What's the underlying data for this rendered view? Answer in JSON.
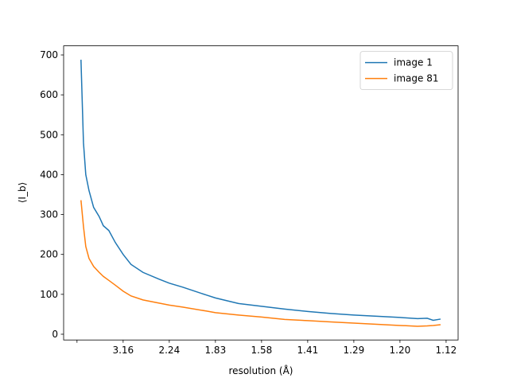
{
  "chart_data": {
    "type": "line",
    "xlabel": "resolution (Å)",
    "ylabel": "⟨I_b⟩",
    "x": [
      0.0086,
      0.014,
      0.019,
      0.026,
      0.036,
      0.048,
      0.057,
      0.069,
      0.083,
      0.1,
      0.117,
      0.143,
      0.178,
      0.2,
      0.229,
      0.281,
      0.3,
      0.35,
      0.4,
      0.45,
      0.5,
      0.55,
      0.6,
      0.65,
      0.7,
      0.738,
      0.759,
      0.772,
      0.788
    ],
    "series": [
      {
        "name": "image 1",
        "color": "#1f77b4",
        "values": [
          688,
          480,
          400,
          360,
          318,
          295,
          272,
          260,
          230,
          200,
          175,
          155,
          138,
          128,
          118,
          98,
          91,
          77,
          70,
          63,
          57,
          52,
          48,
          45,
          42,
          39,
          40,
          35,
          38
        ]
      },
      {
        "name": "image 81",
        "color": "#ff7f0e",
        "values": [
          336,
          270,
          220,
          190,
          170,
          155,
          145,
          135,
          123,
          108,
          96,
          86,
          78,
          73,
          68,
          58,
          54,
          48,
          43,
          37,
          34,
          31,
          28,
          25,
          22,
          20,
          21,
          22,
          24
        ]
      }
    ],
    "xlim": [
      -0.029,
      0.826
    ],
    "ylim": [
      -14.4,
      722.8
    ],
    "xticks": [
      {
        "value": 0
      },
      {
        "value": 0.1,
        "label": "3.16"
      },
      {
        "value": 0.2,
        "label": "2.24"
      },
      {
        "value": 0.3,
        "label": "1.83"
      },
      {
        "value": 0.4,
        "label": "1.58"
      },
      {
        "value": 0.5,
        "label": "1.41"
      },
      {
        "value": 0.6,
        "label": "1.29"
      },
      {
        "value": 0.7,
        "label": "1.20"
      },
      {
        "value": 0.8,
        "label": "1.12"
      }
    ],
    "yticks": [
      0,
      100,
      200,
      300,
      400,
      500,
      600,
      700
    ],
    "legend": "upper right"
  }
}
